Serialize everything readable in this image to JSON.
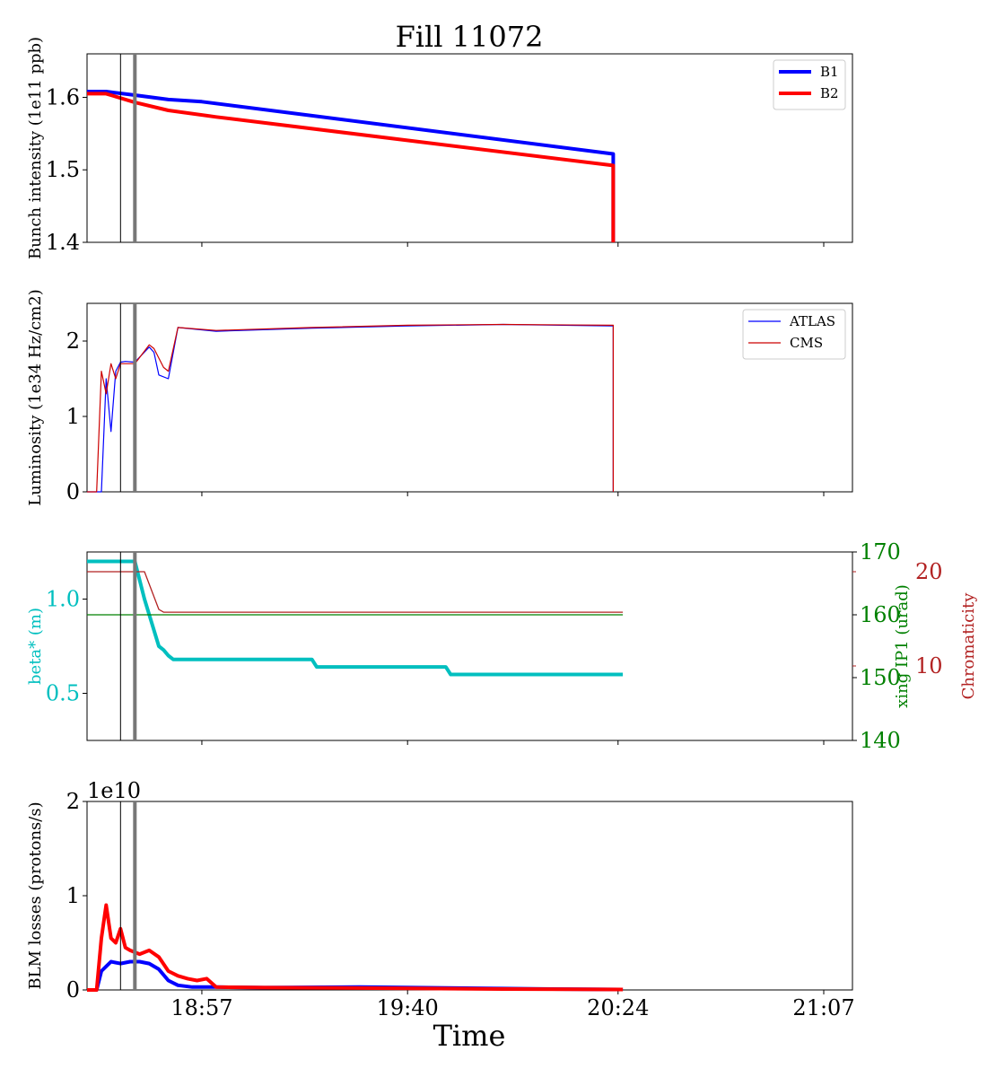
{
  "figure": {
    "title": "Fill 11072",
    "xlabel": "Time",
    "x_ticks": [
      "18:57",
      "19:40",
      "20:24",
      "21:07"
    ],
    "vlines": [
      {
        "time": "18:40",
        "color": "#000000",
        "kind": "thin"
      },
      {
        "time": "18:43",
        "color": "#777777",
        "kind": "thick"
      }
    ]
  },
  "chart_data": [
    {
      "type": "line",
      "title": "Fill 11072",
      "ylabel": "Bunch intensity (1e11 ppb)",
      "ylim": [
        1.4,
        1.66
      ],
      "yticks": [
        "1.4",
        "1.5",
        "1.6"
      ],
      "legend": {
        "placement": "top-right",
        "entries": [
          "B1",
          "B2"
        ]
      },
      "series": [
        {
          "name": "B1",
          "color": "#0000ff",
          "x": [
            "18:33",
            "18:37",
            "18:43",
            "18:50",
            "18:57",
            "20:23",
            "20:23"
          ],
          "y": [
            1.608,
            1.608,
            1.603,
            1.597,
            1.594,
            1.522,
            1.4
          ]
        },
        {
          "name": "B2",
          "color": "#ff0000",
          "x": [
            "18:33",
            "18:37",
            "18:43",
            "18:50",
            "19:00",
            "20:23",
            "20:23"
          ],
          "y": [
            1.605,
            1.605,
            1.593,
            1.582,
            1.573,
            1.506,
            1.4
          ]
        }
      ]
    },
    {
      "type": "line",
      "ylabel": "Luminosity (1e34 Hz/cm2)",
      "ylim": [
        0,
        2.5
      ],
      "yticks": [
        "0",
        "1",
        "2"
      ],
      "legend": {
        "placement": "top-right",
        "entries": [
          "ATLAS",
          "CMS"
        ]
      },
      "series": [
        {
          "name": "ATLAS",
          "color": "#0000ff",
          "x": [
            "18:33",
            "18:36",
            "18:37",
            "18:38",
            "18:39",
            "18:40",
            "18:41",
            "18:43",
            "18:46",
            "18:47",
            "18:48",
            "18:50",
            "18:52",
            "19:00",
            "19:20",
            "19:40",
            "20:00",
            "20:23",
            "20:23"
          ],
          "y": [
            0,
            0,
            1.5,
            0.8,
            1.6,
            1.72,
            1.73,
            1.72,
            1.92,
            1.85,
            1.55,
            1.5,
            2.18,
            2.13,
            2.17,
            2.2,
            2.22,
            2.2,
            0
          ]
        },
        {
          "name": "CMS",
          "color": "#cc0000",
          "x": [
            "18:33",
            "18:35",
            "18:36",
            "18:37",
            "18:38",
            "18:39",
            "18:40",
            "18:43",
            "18:46",
            "18:47",
            "18:49",
            "18:50",
            "18:52",
            "19:00",
            "19:20",
            "19:40",
            "20:00",
            "20:23",
            "20:23"
          ],
          "y": [
            0,
            0,
            1.6,
            1.3,
            1.7,
            1.5,
            1.7,
            1.7,
            1.95,
            1.9,
            1.65,
            1.6,
            2.18,
            2.14,
            2.18,
            2.21,
            2.22,
            2.21,
            0
          ]
        }
      ]
    },
    {
      "type": "line",
      "ylabel": "beta* (m)",
      "ylim": [
        0.25,
        1.25
      ],
      "yticks": [
        "0.5",
        "1.0"
      ],
      "y2": {
        "ylabel": "xing IP1 (urad)",
        "ylim": [
          140,
          170
        ],
        "yticks": [
          "140",
          "150",
          "160",
          "170"
        ]
      },
      "y3": {
        "ylabel": "Chromaticity",
        "yticks": [
          "10",
          "20"
        ]
      },
      "series": [
        {
          "name": "beta*",
          "axis": "left",
          "color": "#00bfbf",
          "x": [
            "18:33",
            "18:43",
            "18:45",
            "18:48",
            "18:49",
            "18:50",
            "18:51",
            "19:20",
            "19:21",
            "19:48",
            "19:49",
            "20:25"
          ],
          "y": [
            1.2,
            1.2,
            1.0,
            0.75,
            0.73,
            0.7,
            0.68,
            0.68,
            0.64,
            0.64,
            0.6,
            0.6
          ]
        },
        {
          "name": "xing IP1",
          "axis": "right",
          "color": "#008000",
          "x": [
            "18:33",
            "20:25"
          ],
          "y": [
            160.0,
            160.0
          ]
        },
        {
          "name": "Chromaticity",
          "axis": "chroma",
          "color": "#b22222",
          "x": [
            "18:33",
            "18:45",
            "18:48",
            "18:49",
            "20:25"
          ],
          "y": [
            20.0,
            20.0,
            16.0,
            15.7,
            15.7
          ]
        }
      ]
    },
    {
      "type": "line",
      "ylabel": "BLM losses (protons/s)",
      "offset_label": "1e10",
      "ylim": [
        0,
        2
      ],
      "yticks": [
        "0",
        "1",
        "2"
      ],
      "series": [
        {
          "name": "B1",
          "color": "#0000ff",
          "x": [
            "18:33",
            "18:35",
            "18:36",
            "18:37",
            "18:38",
            "18:40",
            "18:42",
            "18:44",
            "18:46",
            "18:48",
            "18:50",
            "18:52",
            "18:55",
            "19:00",
            "19:10",
            "19:30",
            "19:50",
            "20:10",
            "20:25"
          ],
          "y": [
            0,
            0,
            0.2,
            0.25,
            0.3,
            0.28,
            0.3,
            0.3,
            0.28,
            0.22,
            0.1,
            0.05,
            0.03,
            0.03,
            0.025,
            0.03,
            0.02,
            0.01,
            0.005
          ]
        },
        {
          "name": "B2",
          "color": "#ff0000",
          "x": [
            "18:33",
            "18:35",
            "18:36",
            "18:37",
            "18:38",
            "18:39",
            "18:40",
            "18:41",
            "18:42",
            "18:44",
            "18:46",
            "18:48",
            "18:50",
            "18:52",
            "18:54",
            "18:56",
            "18:58",
            "19:00",
            "19:10",
            "19:30",
            "20:00",
            "20:25"
          ],
          "y": [
            0,
            0,
            0.55,
            0.9,
            0.55,
            0.5,
            0.65,
            0.45,
            0.42,
            0.38,
            0.42,
            0.35,
            0.2,
            0.15,
            0.12,
            0.1,
            0.12,
            0.03,
            0.025,
            0.02,
            0.01,
            0.005
          ]
        }
      ]
    }
  ]
}
